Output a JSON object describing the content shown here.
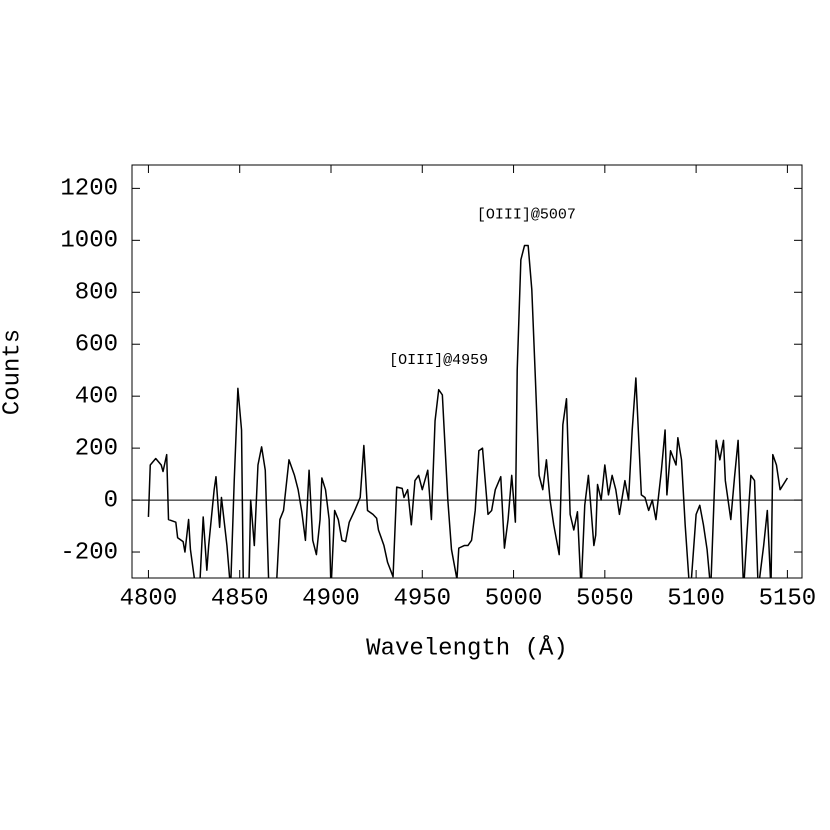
{
  "chart_data": {
    "type": "line",
    "xlabel": "Wavelength (Å)",
    "ylabel": "Counts",
    "xlim": [
      4791,
      5158
    ],
    "ylim": [
      -300,
      1290
    ],
    "xticks": [
      4800,
      4850,
      4900,
      4950,
      5000,
      5050,
      5100,
      5150
    ],
    "yticks": [
      -200,
      0,
      200,
      400,
      600,
      800,
      1000,
      1200
    ],
    "zero_line": true,
    "annotations": [
      {
        "text": "[OIII]@4959",
        "x": 4959,
        "y": 540
      },
      {
        "text": "[OIII]@5007",
        "x": 5007,
        "y": 1100
      }
    ],
    "series": [
      {
        "color": "#000000",
        "x": [
          4800,
          4801,
          4804,
          4807,
          4808,
          4810,
          4811,
          4815,
          4816,
          4819,
          4820,
          4822,
          4823,
          4826,
          4828,
          4830,
          4832,
          4833,
          4836,
          4837,
          4839,
          4840,
          4843,
          4845,
          4847,
          4849,
          4851,
          4852,
          4855,
          4856,
          4858,
          4860,
          4862,
          4864,
          4866,
          4870,
          4872,
          4874,
          4877,
          4880,
          4882,
          4884,
          4886,
          4888,
          4890,
          4892,
          4894,
          4895,
          4897,
          4899,
          4900,
          4902,
          4904,
          4906,
          4908,
          4910,
          4913,
          4916,
          4918,
          4920,
          4923,
          4925,
          4926,
          4929,
          4931,
          4934,
          4936,
          4939,
          4940,
          4942,
          4944,
          4946,
          4948,
          4950,
          4953,
          4955,
          4957,
          4959,
          4961,
          4962,
          4964,
          4966,
          4969,
          4970,
          4973,
          4975,
          4977,
          4979,
          4981,
          4983,
          4986,
          4988,
          4990,
          4993,
          4995,
          4997,
          4999,
          5001,
          5002,
          5004,
          5006,
          5008,
          5010,
          5012,
          5014,
          5016,
          5018,
          5020,
          5022,
          5025,
          5027,
          5029,
          5031,
          5033,
          5035,
          5037,
          5039,
          5041,
          5044,
          5045,
          5046,
          5048,
          5050,
          5052,
          5054,
          5056,
          5058,
          5061,
          5063,
          5065,
          5067,
          5070,
          5072,
          5074,
          5076,
          5078,
          5081,
          5083,
          5084,
          5086,
          5089,
          5090,
          5092,
          5094,
          5096,
          5097,
          5100,
          5102,
          5104,
          5106,
          5108,
          5111,
          5113,
          5115,
          5116,
          5119,
          5121,
          5123,
          5126,
          5128,
          5130,
          5132,
          5134,
          5137,
          5139,
          5141,
          5142,
          5144,
          5146,
          5150
        ],
        "values": [
          -65,
          135,
          160,
          135,
          110,
          175,
          -75,
          -85,
          -145,
          -160,
          -200,
          -75,
          -190,
          -345,
          -345,
          -65,
          -270,
          -175,
          40,
          90,
          -105,
          10,
          -175,
          -345,
          75,
          430,
          270,
          -345,
          -345,
          0,
          -175,
          135,
          205,
          115,
          -345,
          -345,
          -75,
          -40,
          155,
          95,
          40,
          -45,
          -155,
          115,
          -155,
          -210,
          -75,
          85,
          40,
          -75,
          -345,
          -40,
          -75,
          -155,
          -160,
          -85,
          -40,
          10,
          210,
          -40,
          -55,
          -70,
          -115,
          -175,
          -240,
          -295,
          50,
          45,
          10,
          40,
          -95,
          75,
          95,
          40,
          115,
          -75,
          305,
          425,
          405,
          270,
          0,
          -190,
          -305,
          -185,
          -175,
          -175,
          -155,
          -40,
          190,
          200,
          -55,
          -40,
          40,
          90,
          -185,
          -75,
          95,
          -85,
          500,
          925,
          980,
          980,
          810,
          460,
          95,
          40,
          155,
          0,
          -95,
          -210,
          290,
          390,
          -55,
          -115,
          -45,
          -345,
          -20,
          95,
          -175,
          -135,
          60,
          0,
          135,
          20,
          95,
          40,
          -55,
          75,
          0,
          270,
          470,
          20,
          10,
          -40,
          0,
          -75,
          115,
          270,
          20,
          190,
          135,
          240,
          155,
          -95,
          -300,
          -345,
          -55,
          -20,
          -95,
          -190,
          -345,
          230,
          155,
          230,
          75,
          -75,
          85,
          230,
          -345,
          -115,
          95,
          75,
          -345,
          -175,
          -40,
          -345,
          175,
          135,
          40,
          85
        ]
      }
    ]
  }
}
